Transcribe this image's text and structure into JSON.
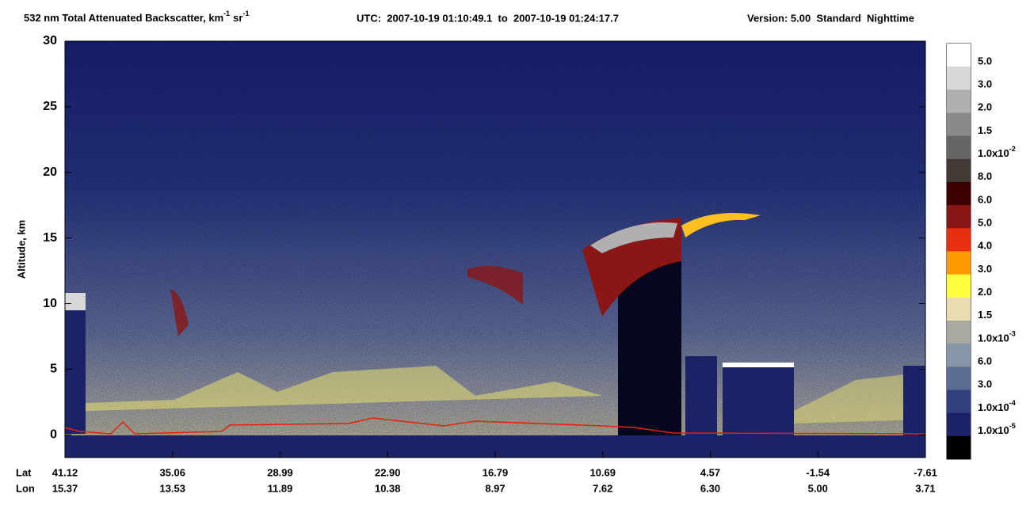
{
  "chart_data": {
    "type": "heatmap",
    "title": {
      "text": "532 nm Total Attenuated Backscatter, km",
      "exp1": "-1",
      "unit2": "sr",
      "exp2": "-1"
    },
    "utc": "UTC:  2007-10-19 01:10:49.1  to  2007-10-19 01:24:17.7",
    "version": "Version: 5.00  Standard  Nighttime",
    "y_label": "Altitude, km",
    "ylim": [
      -2,
      30
    ],
    "yticks": [
      0,
      5,
      10,
      15,
      20,
      25,
      30
    ],
    "x_axis": {
      "lat_label": "Lat",
      "lon_label": "Lon",
      "lat": [
        "41.12",
        "35.06",
        "28.99",
        "22.90",
        "16.79",
        "10.69",
        "4.57",
        "-1.54",
        "-7.61"
      ],
      "lon": [
        "15.37",
        "13.53",
        "11.89",
        "10.38",
        "8.97",
        "7.62",
        "6.30",
        "5.00",
        "3.71"
      ]
    },
    "colorbar": {
      "colors": [
        "#ffffff",
        "#d8d8d8",
        "#b0b0b0",
        "#8a8a8a",
        "#666666",
        "#433a36",
        "#3c0000",
        "#8a1616",
        "#e83010",
        "#ff9a00",
        "#ffff40",
        "#e8dcb0",
        "#a8aaa0",
        "#8796a8",
        "#5a6e94",
        "#33407e",
        "#1c2266",
        "#000000"
      ],
      "labels": [
        {
          "text": "5.0"
        },
        {
          "text": "3.0"
        },
        {
          "text": "2.0"
        },
        {
          "text": "1.5"
        },
        {
          "text": "1.0x10",
          "exp": "-2"
        },
        {
          "text": "8.0"
        },
        {
          "text": "6.0"
        },
        {
          "text": "5.0"
        },
        {
          "text": "4.0"
        },
        {
          "text": "3.0"
        },
        {
          "text": "2.0"
        },
        {
          "text": "1.5"
        },
        {
          "text": "1.0x10",
          "exp": "-3"
        },
        {
          "text": "6.0"
        },
        {
          "text": "3.0"
        },
        {
          "text": "1.0x10",
          "exp": "-4"
        },
        {
          "text": "1.0x10",
          "exp": "-5"
        }
      ]
    }
  }
}
